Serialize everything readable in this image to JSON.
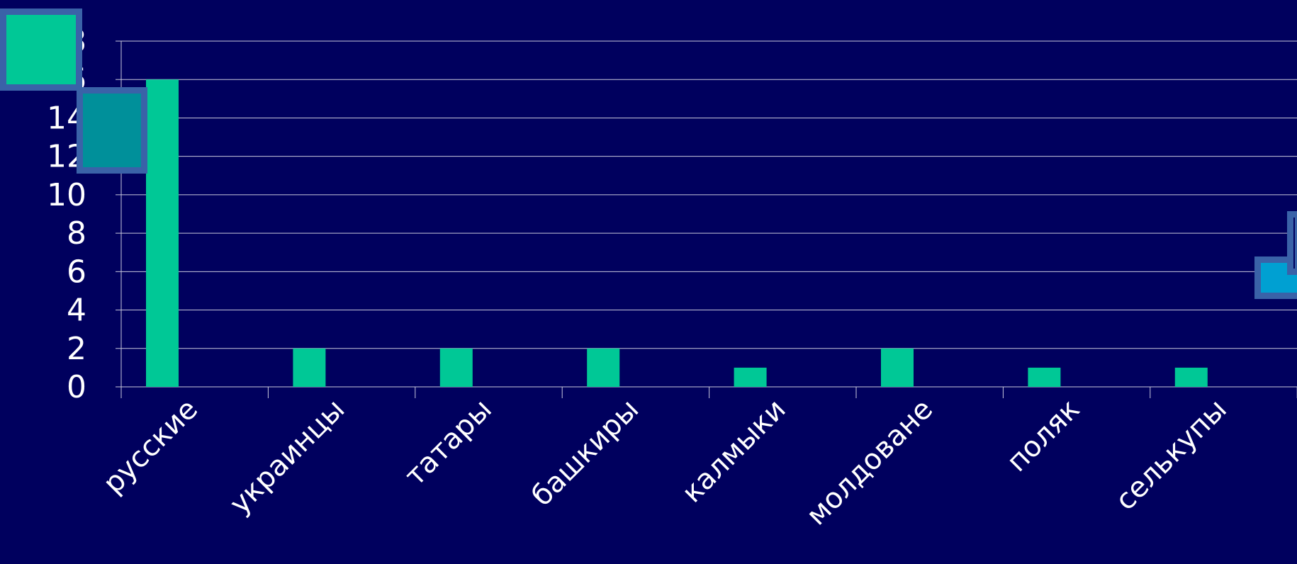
{
  "chart_data": {
    "type": "bar",
    "categories": [
      "русские",
      "украинцы",
      "татары",
      "башкиры",
      "калмыки",
      "молдоване",
      "поляк",
      "селькупы"
    ],
    "values": [
      16,
      2,
      2,
      2,
      1,
      2,
      1,
      1
    ],
    "ylim": [
      0,
      18
    ],
    "yticks": [
      "0",
      "2",
      "4",
      "6",
      "8",
      "10",
      "12",
      "14",
      "16",
      "18"
    ],
    "title": "",
    "xlabel": "",
    "ylabel": "",
    "grid": true,
    "legend": "none",
    "colors": {
      "background": "#00005e",
      "bar": "#00c896",
      "grid": "#c8c8dc",
      "axis": "#c8c8dc",
      "text": "#ffffff",
      "decor_green": "#00c896",
      "decor_teal": "#00909a",
      "decor_blue": "#00a0d2",
      "decor_border": "#3a62a8"
    }
  }
}
